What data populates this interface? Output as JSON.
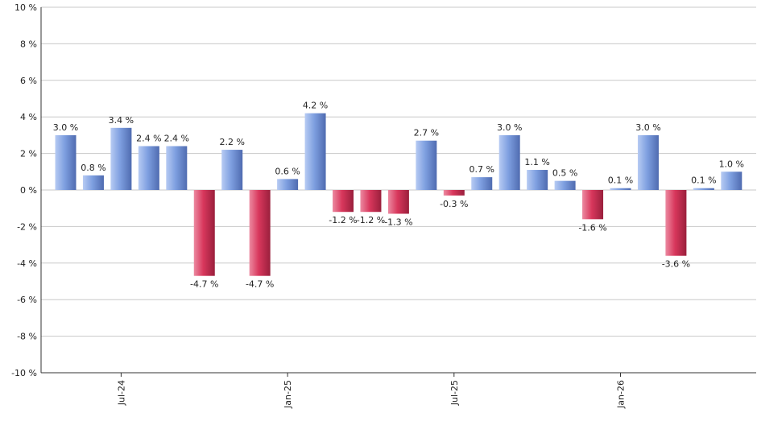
{
  "chart_data": {
    "type": "bar",
    "title": "",
    "xlabel": "",
    "ylabel": "",
    "ylim": [
      -10,
      10
    ],
    "yticks": [
      -10,
      -8,
      -6,
      -4,
      -2,
      0,
      2,
      4,
      6,
      8,
      10
    ],
    "y_tick_suffix": " %",
    "grid": true,
    "values": [
      3.0,
      0.8,
      3.4,
      2.4,
      2.4,
      -4.7,
      2.2,
      -4.7,
      0.6,
      4.2,
      -1.2,
      -1.2,
      -1.3,
      2.7,
      -0.3,
      0.7,
      3.0,
      1.1,
      0.5,
      -1.6,
      0.1,
      3.0,
      -3.6,
      0.1,
      1.0
    ],
    "value_labels": [
      "3.0 %",
      "0.8 %",
      "3.4 %",
      "2.4 %",
      "2.4 %",
      "-4.7 %",
      "2.2 %",
      "-4.7 %",
      "0.6 %",
      "4.2 %",
      "-1.2 %",
      "-1.2 %",
      "-1.3 %",
      "2.7 %",
      "-0.3 %",
      "0.7 %",
      "3.0 %",
      "1.1 %",
      "0.5 %",
      "-1.6 %",
      "0.1 %",
      "3.0 %",
      "-3.6 %",
      "0.1 %",
      "1.0 %"
    ],
    "x_tick_labels": [
      {
        "index": 2,
        "label": "Jul-24"
      },
      {
        "index": 8,
        "label": "Jan-25"
      },
      {
        "index": 14,
        "label": "Jul-25"
      },
      {
        "index": 20,
        "label": "Jan-26"
      }
    ],
    "colors": {
      "positive": "#7e9fe0",
      "positive_light": "#b7cbf3",
      "positive_dark": "#4f6bb0",
      "negative": "#d8375c",
      "negative_light": "#ec8aa1",
      "negative_dark": "#9a1f3c",
      "grid": "#c8c8c8",
      "axis": "#333333"
    }
  }
}
